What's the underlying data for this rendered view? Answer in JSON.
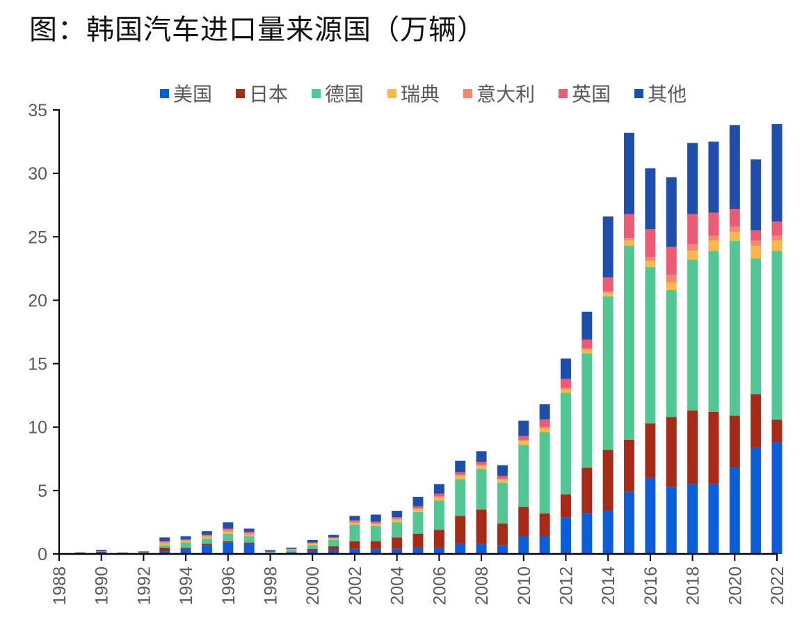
{
  "title": "图：韩国汽车进口量来源国（万辆）",
  "chart_data": {
    "type": "bar",
    "stacked": true,
    "title": "图：韩国汽车进口量来源国（万辆）",
    "xlabel": "",
    "ylabel": "",
    "ylim": [
      0,
      35
    ],
    "yticks": [
      0,
      5,
      10,
      15,
      20,
      25,
      30,
      35
    ],
    "xtick_labels": [
      "1988",
      "1990",
      "1992",
      "1994",
      "1996",
      "1998",
      "2000",
      "2002",
      "2004",
      "2006",
      "2008",
      "2010",
      "2012",
      "2014",
      "2016",
      "2018",
      "2020",
      "2022"
    ],
    "legend_position": "top",
    "grid": false,
    "categories": [
      "1988",
      "1989",
      "1990",
      "1991",
      "1992",
      "1993",
      "1994",
      "1995",
      "1996",
      "1997",
      "1998",
      "1999",
      "2000",
      "2001",
      "2002",
      "2003",
      "2004",
      "2005",
      "2006",
      "2007",
      "2008",
      "2009",
      "2010",
      "2011",
      "2012",
      "2013",
      "2014",
      "2015",
      "2016",
      "2017",
      "2018",
      "2019",
      "2020",
      "2021",
      "2022"
    ],
    "series": [
      {
        "name": "美国",
        "color": "#0b5ed7",
        "values": [
          0,
          0.02,
          0.15,
          0.02,
          0.05,
          0.2,
          0.4,
          0.7,
          0.9,
          0.8,
          0.05,
          0.1,
          0.25,
          0.3,
          0.4,
          0.4,
          0.4,
          0.5,
          0.5,
          0.8,
          0.8,
          0.7,
          1.4,
          1.4,
          2.9,
          3.2,
          3.4,
          4.9,
          6.0,
          5.3,
          5.5,
          5.5,
          6.8,
          8.4,
          8.8
        ]
      },
      {
        "name": "日本",
        "color": "#a52a17",
        "values": [
          0,
          0.01,
          0.02,
          0.01,
          0.02,
          0.3,
          0.1,
          0.1,
          0.1,
          0.1,
          0.02,
          0.05,
          0.15,
          0.3,
          0.6,
          0.6,
          0.9,
          1.1,
          1.4,
          2.2,
          2.7,
          1.7,
          2.3,
          1.8,
          1.8,
          3.6,
          4.8,
          4.1,
          4.3,
          5.5,
          5.8,
          5.7,
          4.1,
          4.2,
          1.8
        ]
      },
      {
        "name": "德国",
        "color": "#52c793",
        "values": [
          0,
          0.01,
          0.02,
          0.01,
          0.02,
          0.2,
          0.4,
          0.4,
          0.6,
          0.5,
          0.05,
          0.15,
          0.3,
          0.5,
          1.3,
          1.2,
          1.2,
          1.7,
          2.3,
          2.9,
          3.2,
          3.2,
          4.9,
          6.4,
          8.0,
          9.0,
          12.1,
          15.3,
          12.3,
          10.0,
          11.9,
          12.7,
          13.8,
          10.7,
          13.3
        ]
      },
      {
        "name": "瑞典",
        "color": "#fbb84a",
        "values": [
          0,
          0.01,
          0.01,
          0.01,
          0.01,
          0.15,
          0.1,
          0.15,
          0.15,
          0.1,
          0.02,
          0.05,
          0.1,
          0.1,
          0.15,
          0.15,
          0.2,
          0.2,
          0.25,
          0.25,
          0.25,
          0.25,
          0.3,
          0.3,
          0.3,
          0.3,
          0.3,
          0.4,
          0.5,
          0.6,
          0.7,
          0.8,
          0.7,
          1.0,
          0.8
        ]
      },
      {
        "name": "意大利",
        "color": "#ee8a72",
        "values": [
          0,
          0.01,
          0.01,
          0.01,
          0.01,
          0.1,
          0.1,
          0.1,
          0.15,
          0.15,
          0.02,
          0.03,
          0.05,
          0.05,
          0.1,
          0.1,
          0.1,
          0.1,
          0.1,
          0.1,
          0.1,
          0.1,
          0.1,
          0.1,
          0.1,
          0.1,
          0.1,
          0.2,
          0.3,
          0.6,
          0.5,
          0.4,
          0.4,
          0.4,
          0.4
        ]
      },
      {
        "name": "英国",
        "color": "#eb5b73",
        "values": [
          0,
          0.01,
          0.01,
          0.01,
          0.01,
          0.05,
          0.05,
          0.05,
          0.1,
          0.1,
          0.02,
          0.02,
          0.05,
          0.05,
          0.1,
          0.1,
          0.1,
          0.15,
          0.2,
          0.2,
          0.2,
          0.2,
          0.3,
          0.6,
          0.7,
          0.7,
          1.1,
          1.9,
          2.2,
          2.2,
          2.4,
          1.8,
          1.4,
          0.8,
          1.1
        ]
      },
      {
        "name": "其他",
        "color": "#1f4faa",
        "values": [
          0,
          0.05,
          0.1,
          0.04,
          0.08,
          0.3,
          0.25,
          0.3,
          0.5,
          0.25,
          0.12,
          0.1,
          0.2,
          0.2,
          0.35,
          0.55,
          0.5,
          0.75,
          0.75,
          0.9,
          0.85,
          0.85,
          1.2,
          1.2,
          1.6,
          2.2,
          4.8,
          6.4,
          4.8,
          5.5,
          5.6,
          5.6,
          6.6,
          5.6,
          7.7
        ]
      }
    ]
  }
}
